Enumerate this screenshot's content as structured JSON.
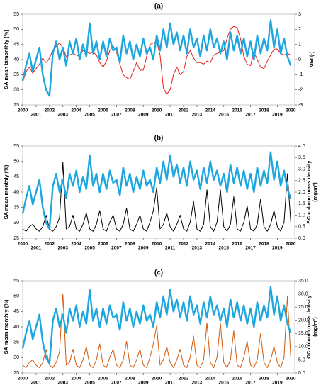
{
  "chart_data": [
    {
      "type": "line",
      "title": "(a)",
      "x": [
        2000,
        2000.25,
        2000.5,
        2000.75,
        2001,
        2001.25,
        2001.5,
        2001.75,
        2002,
        2002.25,
        2002.5,
        2002.75,
        2003,
        2003.25,
        2003.5,
        2003.75,
        2004,
        2004.25,
        2004.5,
        2004.75,
        2005,
        2005.25,
        2005.5,
        2005.75,
        2006,
        2006.25,
        2006.5,
        2006.75,
        2007,
        2007.25,
        2007.5,
        2007.75,
        2008,
        2008.25,
        2008.5,
        2008.75,
        2009,
        2009.25,
        2009.5,
        2009.75,
        2010,
        2010.25,
        2010.5,
        2010.75,
        2011,
        2011.25,
        2011.5,
        2011.75,
        2012,
        2012.25,
        2012.5,
        2012.75,
        2013,
        2013.25,
        2013.5,
        2013.75,
        2014,
        2014.25,
        2014.5,
        2014.75,
        2015,
        2015.25,
        2015.5,
        2015.75,
        2016,
        2016.25,
        2016.5,
        2016.75,
        2017,
        2017.25,
        2017.5,
        2017.75,
        2018,
        2018.25,
        2018.5,
        2018.75,
        2019,
        2019.25,
        2019.5,
        2019.75,
        2020
      ],
      "xlim": [
        2000,
        2020.3
      ],
      "xticks": [
        2000,
        2001,
        2002,
        2003,
        2004,
        2005,
        2006,
        2007,
        2008,
        2009,
        2010,
        2011,
        2012,
        2013,
        2014,
        2015,
        2016,
        2017,
        2018,
        2019,
        2020
      ],
      "ylim": [
        25,
        55
      ],
      "yticks": [
        25,
        30,
        35,
        40,
        45,
        50,
        55
      ],
      "y2lim": [
        -3,
        3
      ],
      "y2ticks": [
        -3,
        -2,
        -1,
        0,
        1,
        2,
        3
      ],
      "ylabel": "SA mean bimonthly (%)",
      "y2label": "MEI (-)",
      "ylabel_color": "#1ea6df",
      "y2label_color": "#e3201b",
      "series": [
        {
          "color": "#1ea6df",
          "width": 2.4,
          "values": [
            33,
            38,
            42,
            36,
            40,
            44,
            35,
            30,
            28,
            42,
            46,
            40,
            44,
            38,
            46,
            42,
            47,
            40,
            45,
            41,
            52,
            42,
            46,
            40,
            46,
            41,
            47,
            43,
            44,
            39,
            48,
            42,
            46,
            40,
            45,
            41,
            47,
            42,
            44,
            40,
            48,
            43,
            50,
            44,
            52,
            45,
            49,
            43,
            48,
            42,
            50,
            44,
            47,
            41,
            48,
            43,
            50,
            44,
            47,
            42,
            46,
            40,
            49,
            43,
            48,
            42,
            47,
            41,
            46,
            40,
            48,
            42,
            47,
            43,
            53,
            44,
            50,
            42,
            47,
            41,
            38
          ]
        },
        {
          "color": "#e3201b",
          "width": 1,
          "axis": "y2",
          "values": [
            -1.5,
            -0.8,
            -0.5,
            -0.9,
            -0.6,
            -0.3,
            0.1,
            -0.2,
            0.1,
            0.6,
            0.9,
            1.1,
            0.8,
            0.2,
            0.3,
            0.4,
            0.3,
            0.2,
            0.6,
            0.5,
            0.4,
            0.5,
            0.3,
            -0.2,
            -0.5,
            -0.1,
            0.6,
            0.9,
            0.5,
            -0.3,
            -1.0,
            -1.2,
            -1.3,
            -0.8,
            -0.2,
            -0.7,
            -0.7,
            0.2,
            1.0,
            1.1,
            1.2,
            0.3,
            -1.9,
            -2.3,
            -2.0,
            -1.0,
            -0.5,
            -1.0,
            -0.8,
            0.2,
            0.6,
            0.1,
            -0.2,
            -0.2,
            -0.3,
            -0.1,
            -0.2,
            0.3,
            0.4,
            0.5,
            0.6,
            1.4,
            2.0,
            2.2,
            2.1,
            1.4,
            0.2,
            -0.3,
            -0.4,
            0.5,
            0.0,
            -0.5,
            -0.6,
            -0.1,
            0.3,
            0.7,
            0.7,
            0.4,
            0.3,
            0.4,
            0.3
          ]
        }
      ]
    },
    {
      "type": "line",
      "title": "(b)",
      "x": [
        2000,
        2000.25,
        2000.5,
        2000.75,
        2001,
        2001.25,
        2001.5,
        2001.75,
        2002,
        2002.25,
        2002.5,
        2002.75,
        2003,
        2003.25,
        2003.5,
        2003.75,
        2004,
        2004.25,
        2004.5,
        2004.75,
        2005,
        2005.25,
        2005.5,
        2005.75,
        2006,
        2006.25,
        2006.5,
        2006.75,
        2007,
        2007.25,
        2007.5,
        2007.75,
        2008,
        2008.25,
        2008.5,
        2008.75,
        2009,
        2009.25,
        2009.5,
        2009.75,
        2010,
        2010.25,
        2010.5,
        2010.75,
        2011,
        2011.25,
        2011.5,
        2011.75,
        2012,
        2012.25,
        2012.5,
        2012.75,
        2013,
        2013.25,
        2013.5,
        2013.75,
        2014,
        2014.25,
        2014.5,
        2014.75,
        2015,
        2015.25,
        2015.5,
        2015.75,
        2016,
        2016.25,
        2016.5,
        2016.75,
        2017,
        2017.25,
        2017.5,
        2017.75,
        2018,
        2018.25,
        2018.5,
        2018.75,
        2019,
        2019.25,
        2019.5,
        2019.75,
        2020
      ],
      "xlim": [
        2000,
        2020.3
      ],
      "xticks": [
        2000,
        2001,
        2002,
        2003,
        2004,
        2005,
        2006,
        2007,
        2008,
        2009,
        2010,
        2011,
        2012,
        2013,
        2014,
        2015,
        2016,
        2017,
        2018,
        2019,
        2020
      ],
      "ylim": [
        25,
        55
      ],
      "yticks": [
        25,
        30,
        35,
        40,
        45,
        50,
        55
      ],
      "y2lim": [
        0,
        4
      ],
      "y2ticks": [
        {
          "value": 0,
          "label": "0.0"
        },
        {
          "value": 0.5,
          "label": "0.5"
        },
        {
          "value": 1,
          "label": "1.0"
        },
        {
          "value": 1.5,
          "label": "1.5"
        },
        {
          "value": 2,
          "label": "2.0"
        },
        {
          "value": 2.5,
          "label": "2.5"
        },
        {
          "value": 3,
          "label": "3.0"
        },
        {
          "value": 3.5,
          "label": "3.5"
        },
        {
          "value": 4,
          "label": "4.0"
        }
      ],
      "ylabel": "SA mean monthly (%)",
      "y2label": [
        "BC column mass density",
        "(mg/m²)"
      ],
      "ylabel_color": "#1ea6df",
      "y2label_color": "#000000",
      "series": [
        {
          "color": "#1ea6df",
          "width": 2.4,
          "values": [
            33,
            38,
            42,
            36,
            40,
            44,
            35,
            30,
            28,
            42,
            46,
            40,
            44,
            38,
            46,
            42,
            47,
            40,
            45,
            41,
            52,
            42,
            46,
            40,
            46,
            41,
            47,
            43,
            44,
            39,
            48,
            42,
            46,
            40,
            45,
            41,
            47,
            42,
            44,
            40,
            48,
            43,
            50,
            44,
            52,
            45,
            49,
            43,
            48,
            42,
            50,
            44,
            47,
            41,
            48,
            43,
            50,
            44,
            47,
            42,
            46,
            40,
            49,
            43,
            48,
            42,
            47,
            41,
            46,
            40,
            48,
            42,
            47,
            43,
            53,
            44,
            50,
            42,
            47,
            41,
            38
          ]
        },
        {
          "color": "#000000",
          "width": 1,
          "axis": "y2",
          "values": [
            0.4,
            0.3,
            0.5,
            0.6,
            0.4,
            0.3,
            0.5,
            1.0,
            0.4,
            0.3,
            0.5,
            0.9,
            3.3,
            0.4,
            0.5,
            1.0,
            0.4,
            0.3,
            0.6,
            1.1,
            0.4,
            0.3,
            0.6,
            1.2,
            0.4,
            0.3,
            0.7,
            1.0,
            0.4,
            0.3,
            0.6,
            1.3,
            0.4,
            0.3,
            0.6,
            1.0,
            0.4,
            0.3,
            0.7,
            1.2,
            2.2,
            0.4,
            0.6,
            1.1,
            0.5,
            0.3,
            0.6,
            1.0,
            0.4,
            0.3,
            0.7,
            1.6,
            0.4,
            0.3,
            0.6,
            2.1,
            0.5,
            0.3,
            0.7,
            2.1,
            0.5,
            0.3,
            0.6,
            1.8,
            0.4,
            0.3,
            0.7,
            1.4,
            0.4,
            0.3,
            0.6,
            1.7,
            0.5,
            0.3,
            0.6,
            1.2,
            0.5,
            0.3,
            0.7,
            2.8,
            0.7
          ]
        }
      ]
    },
    {
      "type": "line",
      "title": "(c)",
      "x": [
        2000,
        2000.25,
        2000.5,
        2000.75,
        2001,
        2001.25,
        2001.5,
        2001.75,
        2002,
        2002.25,
        2002.5,
        2002.75,
        2003,
        2003.25,
        2003.5,
        2003.75,
        2004,
        2004.25,
        2004.5,
        2004.75,
        2005,
        2005.25,
        2005.5,
        2005.75,
        2006,
        2006.25,
        2006.5,
        2006.75,
        2007,
        2007.25,
        2007.5,
        2007.75,
        2008,
        2008.25,
        2008.5,
        2008.75,
        2009,
        2009.25,
        2009.5,
        2009.75,
        2010,
        2010.25,
        2010.5,
        2010.75,
        2011,
        2011.25,
        2011.5,
        2011.75,
        2012,
        2012.25,
        2012.5,
        2012.75,
        2013,
        2013.25,
        2013.5,
        2013.75,
        2014,
        2014.25,
        2014.5,
        2014.75,
        2015,
        2015.25,
        2015.5,
        2015.75,
        2016,
        2016.25,
        2016.5,
        2016.75,
        2017,
        2017.25,
        2017.5,
        2017.75,
        2018,
        2018.25,
        2018.5,
        2018.75,
        2019,
        2019.25,
        2019.5,
        2019.75,
        2020
      ],
      "xlim": [
        2000,
        2020.3
      ],
      "xticks": [
        2000,
        2001,
        2002,
        2003,
        2004,
        2005,
        2006,
        2007,
        2008,
        2009,
        2010,
        2011,
        2012,
        2013,
        2014,
        2015,
        2016,
        2017,
        2018,
        2019,
        2020
      ],
      "ylim": [
        25,
        55
      ],
      "yticks": [
        25,
        30,
        35,
        40,
        45,
        50,
        55
      ],
      "y2lim": [
        0,
        35
      ],
      "y2ticks": [
        {
          "value": 0,
          "label": "0.0"
        },
        {
          "value": 5,
          "label": "5.0"
        },
        {
          "value": 10,
          "label": "10.0"
        },
        {
          "value": 15,
          "label": "15.0"
        },
        {
          "value": 20,
          "label": "20.0"
        },
        {
          "value": 25,
          "label": "25.0"
        },
        {
          "value": 30,
          "label": "30.0"
        },
        {
          "value": 35,
          "label": "35.0"
        }
      ],
      "ylabel": "SA mean monthly (%)",
      "y2label": [
        "OC column mass density",
        "(mg/m²)"
      ],
      "ylabel_color": "#1ea6df",
      "y2label_color": "#d35a0c",
      "series": [
        {
          "color": "#1ea6df",
          "width": 2.4,
          "values": [
            33,
            38,
            42,
            36,
            40,
            44,
            35,
            30,
            28,
            42,
            46,
            40,
            44,
            38,
            46,
            42,
            47,
            40,
            45,
            41,
            52,
            42,
            46,
            40,
            46,
            41,
            47,
            43,
            44,
            39,
            48,
            42,
            46,
            40,
            45,
            41,
            47,
            42,
            44,
            40,
            48,
            43,
            50,
            44,
            52,
            45,
            49,
            43,
            48,
            42,
            50,
            44,
            47,
            41,
            48,
            43,
            50,
            44,
            47,
            42,
            46,
            40,
            49,
            43,
            48,
            42,
            47,
            41,
            46,
            40,
            48,
            42,
            47,
            43,
            53,
            44,
            50,
            42,
            47,
            41,
            38
          ]
        },
        {
          "color": "#d35a0c",
          "width": 1,
          "axis": "y2",
          "values": [
            3,
            2,
            4,
            5,
            3,
            2,
            4,
            9,
            3,
            2,
            4,
            8,
            30,
            3,
            4,
            9,
            3,
            2,
            5,
            10,
            3,
            2,
            5,
            11,
            3,
            2,
            6,
            9,
            3,
            2,
            5,
            12,
            3,
            2,
            5,
            9,
            3,
            2,
            6,
            11,
            18,
            3,
            5,
            10,
            4,
            2,
            5,
            9,
            3,
            2,
            6,
            14,
            3,
            2,
            5,
            19,
            4,
            2,
            6,
            19,
            4,
            2,
            5,
            16,
            3,
            2,
            6,
            12,
            3,
            2,
            5,
            15,
            4,
            2,
            5,
            10,
            4,
            2,
            6,
            29,
            6
          ]
        }
      ]
    }
  ]
}
